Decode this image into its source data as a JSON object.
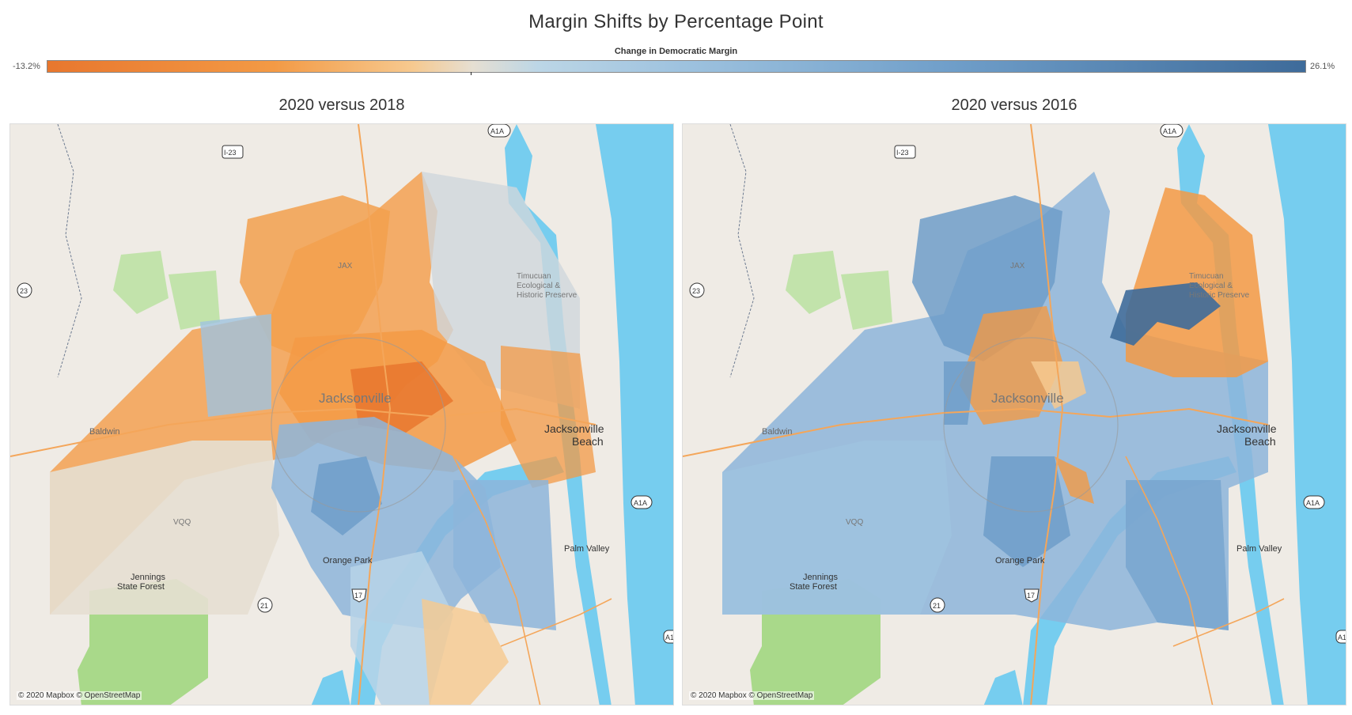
{
  "title": "Margin Shifts by Percentage Point",
  "legend": {
    "title": "Change in Democratic Margin",
    "min_label": "-13.2%",
    "max_label": "26.1%",
    "min_value": -13.2,
    "max_value": 26.1
  },
  "maps": [
    {
      "subtitle": "2020 versus 2018",
      "credit": "© 2020 Mapbox © OpenStreetMap"
    },
    {
      "subtitle": "2020 versus 2016",
      "credit": "© 2020 Mapbox © OpenStreetMap"
    }
  ],
  "places": {
    "jacksonville": "Jacksonville",
    "jax_beach_1": "Jacksonville",
    "jax_beach_2": "Beach",
    "baldwin": "Baldwin",
    "orange_park": "Orange Park",
    "palm_valley": "Palm Valley",
    "jennings_1": "Jennings",
    "jennings_2": "State Forest",
    "timucuan_1": "Timucuan",
    "timucuan_2": "Ecological &",
    "timucuan_3": "Historic Preserve",
    "jax_airport": "JAX",
    "vqq": "VQQ"
  },
  "shields": {
    "a1a": "A1A",
    "i23": "I-23",
    "i23b": "I-23",
    "r23": "23",
    "r21": "21",
    "r17": "17",
    "a1": "A1"
  },
  "colors": {
    "land": "#efebe5",
    "water": "#76cdef",
    "park": "#a9d98a",
    "road": "#f4a65a",
    "orange_strong": "#e8772e",
    "orange": "#f39a45",
    "orange_light": "#f6c98f",
    "neutral": "#e6dfd2",
    "blue_light": "#b7d4e8",
    "blue": "#8db5da",
    "blue_mid": "#6f9ec9",
    "blue_dark": "#3e6b9a"
  }
}
